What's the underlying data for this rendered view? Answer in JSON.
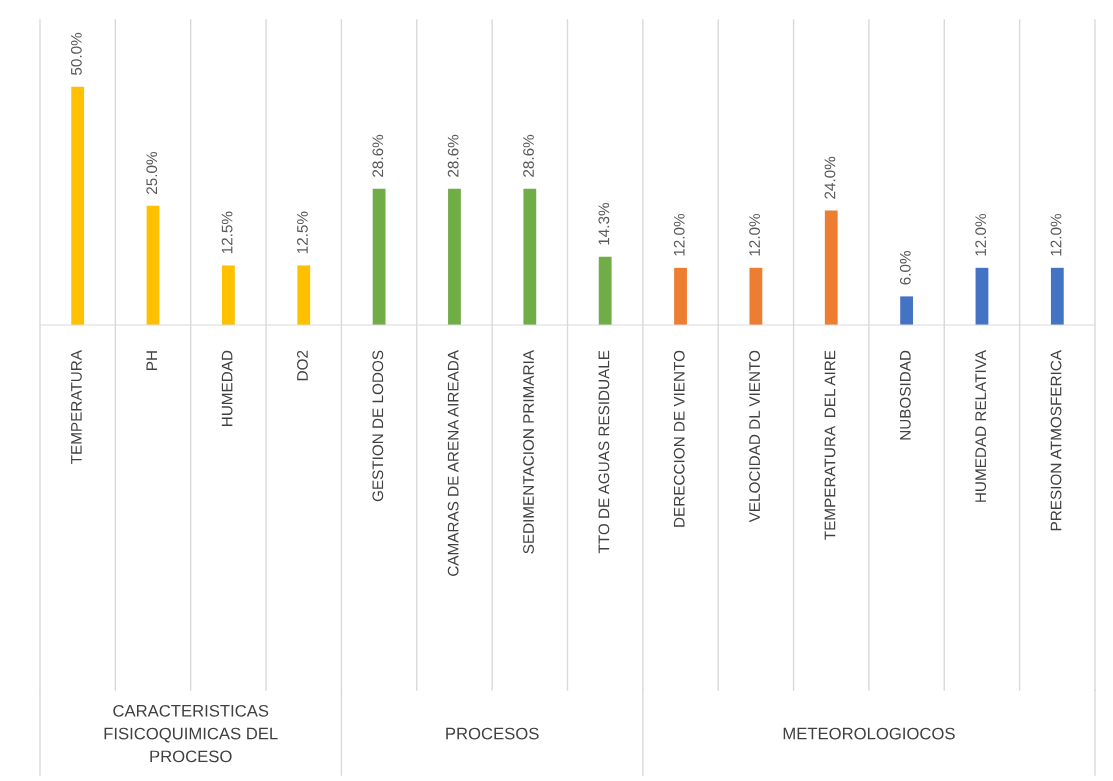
{
  "chart_data": {
    "type": "bar",
    "categories": [
      "TEMPERATURA",
      "PH",
      "HUMEDAD",
      "DO2",
      "GESTION DE LODOS",
      "CAMARAS DE ARENA AIREADA",
      "SEDIMENTACION PRIMARIA",
      "TTO DE AGUAS RESIDUALE",
      "DERECCION DE VIENTO",
      "VELOCIDAD DL VIENTO",
      "TEMPERATURA  DEL AIRE",
      "NUBOSIDAD",
      "HUMEDAD RELATIVA",
      "PRESION ATMOSFERICA"
    ],
    "values": [
      50.0,
      25.0,
      12.5,
      12.5,
      28.6,
      28.6,
      28.6,
      14.3,
      12.0,
      12.0,
      24.0,
      6.0,
      12.0,
      12.0
    ],
    "value_labels": [
      "50.0%",
      "25.0%",
      "12.5%",
      "12.5%",
      "28.6%",
      "28.6%",
      "28.6%",
      "14.3%",
      "12.0%",
      "12.0%",
      "24.0%",
      "6.0%",
      "12.0%",
      "12.0%"
    ],
    "colors": [
      "#ffc000",
      "#ffc000",
      "#ffc000",
      "#ffc000",
      "#70ad47",
      "#70ad47",
      "#70ad47",
      "#70ad47",
      "#ed7d31",
      "#ed7d31",
      "#ed7d31",
      "#4472c4",
      "#4472c4",
      "#4472c4"
    ],
    "annotations": [
      "CARACTERISTICAS\nFISICOQUIMICAS DEL\nPROCESO",
      "PROCESOS",
      "METEOROLOGIOCOS"
    ],
    "tick_labels": "x"
  }
}
